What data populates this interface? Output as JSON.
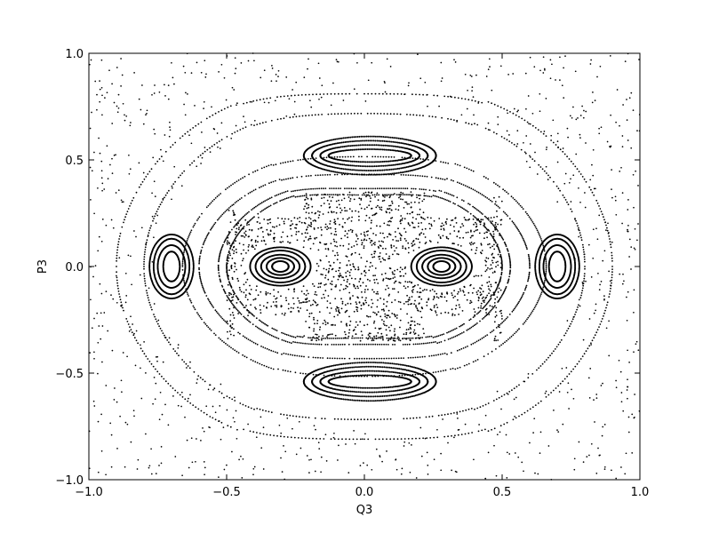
{
  "chart_data": {
    "type": "scatter",
    "title": "",
    "xlabel": "Q3",
    "ylabel": "P3",
    "xlim": [
      -1.0,
      1.0
    ],
    "ylim": [
      -1.0,
      1.0
    ],
    "xticks": [
      -1.0,
      -0.5,
      0.0,
      0.5,
      1.0
    ],
    "yticks": [
      -1.0,
      -0.5,
      0.0,
      0.5,
      1.0
    ],
    "xtick_labels": [
      "−1.0",
      "−0.5",
      "0.0",
      "0.5",
      "1.0"
    ],
    "ytick_labels": [
      "−1.0",
      "−0.5",
      "0.0",
      "0.5",
      "1.0"
    ],
    "grid": false,
    "legend": "none",
    "marker_color": "#000000",
    "series": [
      {
        "structure": "islands",
        "orbits": [
          {
            "cx": -0.305,
            "cy": 0.0,
            "rx": [
              0.03,
              0.05,
              0.07,
              0.09,
              0.11
            ],
            "ry": [
              0.025,
              0.04,
              0.055,
              0.075,
              0.09
            ]
          },
          {
            "cx": 0.28,
            "cy": 0.0,
            "rx": [
              0.03,
              0.05,
              0.07,
              0.09,
              0.11
            ],
            "ry": [
              0.025,
              0.04,
              0.055,
              0.075,
              0.09
            ]
          },
          {
            "cx": -0.7,
            "cy": 0.0,
            "rx": [
              0.03,
              0.05,
              0.065,
              0.08
            ],
            "ry": [
              0.07,
              0.1,
              0.13,
              0.15
            ]
          },
          {
            "cx": 0.7,
            "cy": 0.0,
            "rx": [
              0.03,
              0.05,
              0.065,
              0.08
            ],
            "ry": [
              0.07,
              0.1,
              0.13,
              0.15
            ]
          },
          {
            "cx": 0.02,
            "cy": 0.52,
            "rx": [
              0.15,
              0.18,
              0.21,
              0.24
            ],
            "ry": [
              0.03,
              0.05,
              0.07,
              0.09
            ]
          },
          {
            "cx": 0.02,
            "cy": -0.54,
            "rx": [
              0.15,
              0.18,
              0.21,
              0.24
            ],
            "ry": [
              0.03,
              0.05,
              0.07,
              0.09
            ]
          }
        ]
      },
      {
        "structure": "chaotic_band",
        "region": {
          "x": [
            -0.5,
            0.5
          ],
          "y": [
            -0.35,
            0.35
          ]
        }
      },
      {
        "structure": "outer_curves",
        "orbits": [
          {
            "kind": "peanut",
            "a": 0.5,
            "b": 0.39,
            "dent": 0.14
          },
          {
            "kind": "peanut",
            "a": 0.53,
            "b": 0.42,
            "dent": 0.13
          },
          {
            "kind": "peanut",
            "a": 0.6,
            "b": 0.48,
            "dent": 0.1
          },
          {
            "kind": "peanut",
            "a": 0.66,
            "b": 0.56,
            "dent": 0.08
          },
          {
            "kind": "peanut",
            "a": 0.8,
            "b": 0.78,
            "dent": 0.08
          },
          {
            "kind": "peanut",
            "a": 0.9,
            "b": 0.9,
            "dent": 0.1
          }
        ]
      }
    ]
  }
}
